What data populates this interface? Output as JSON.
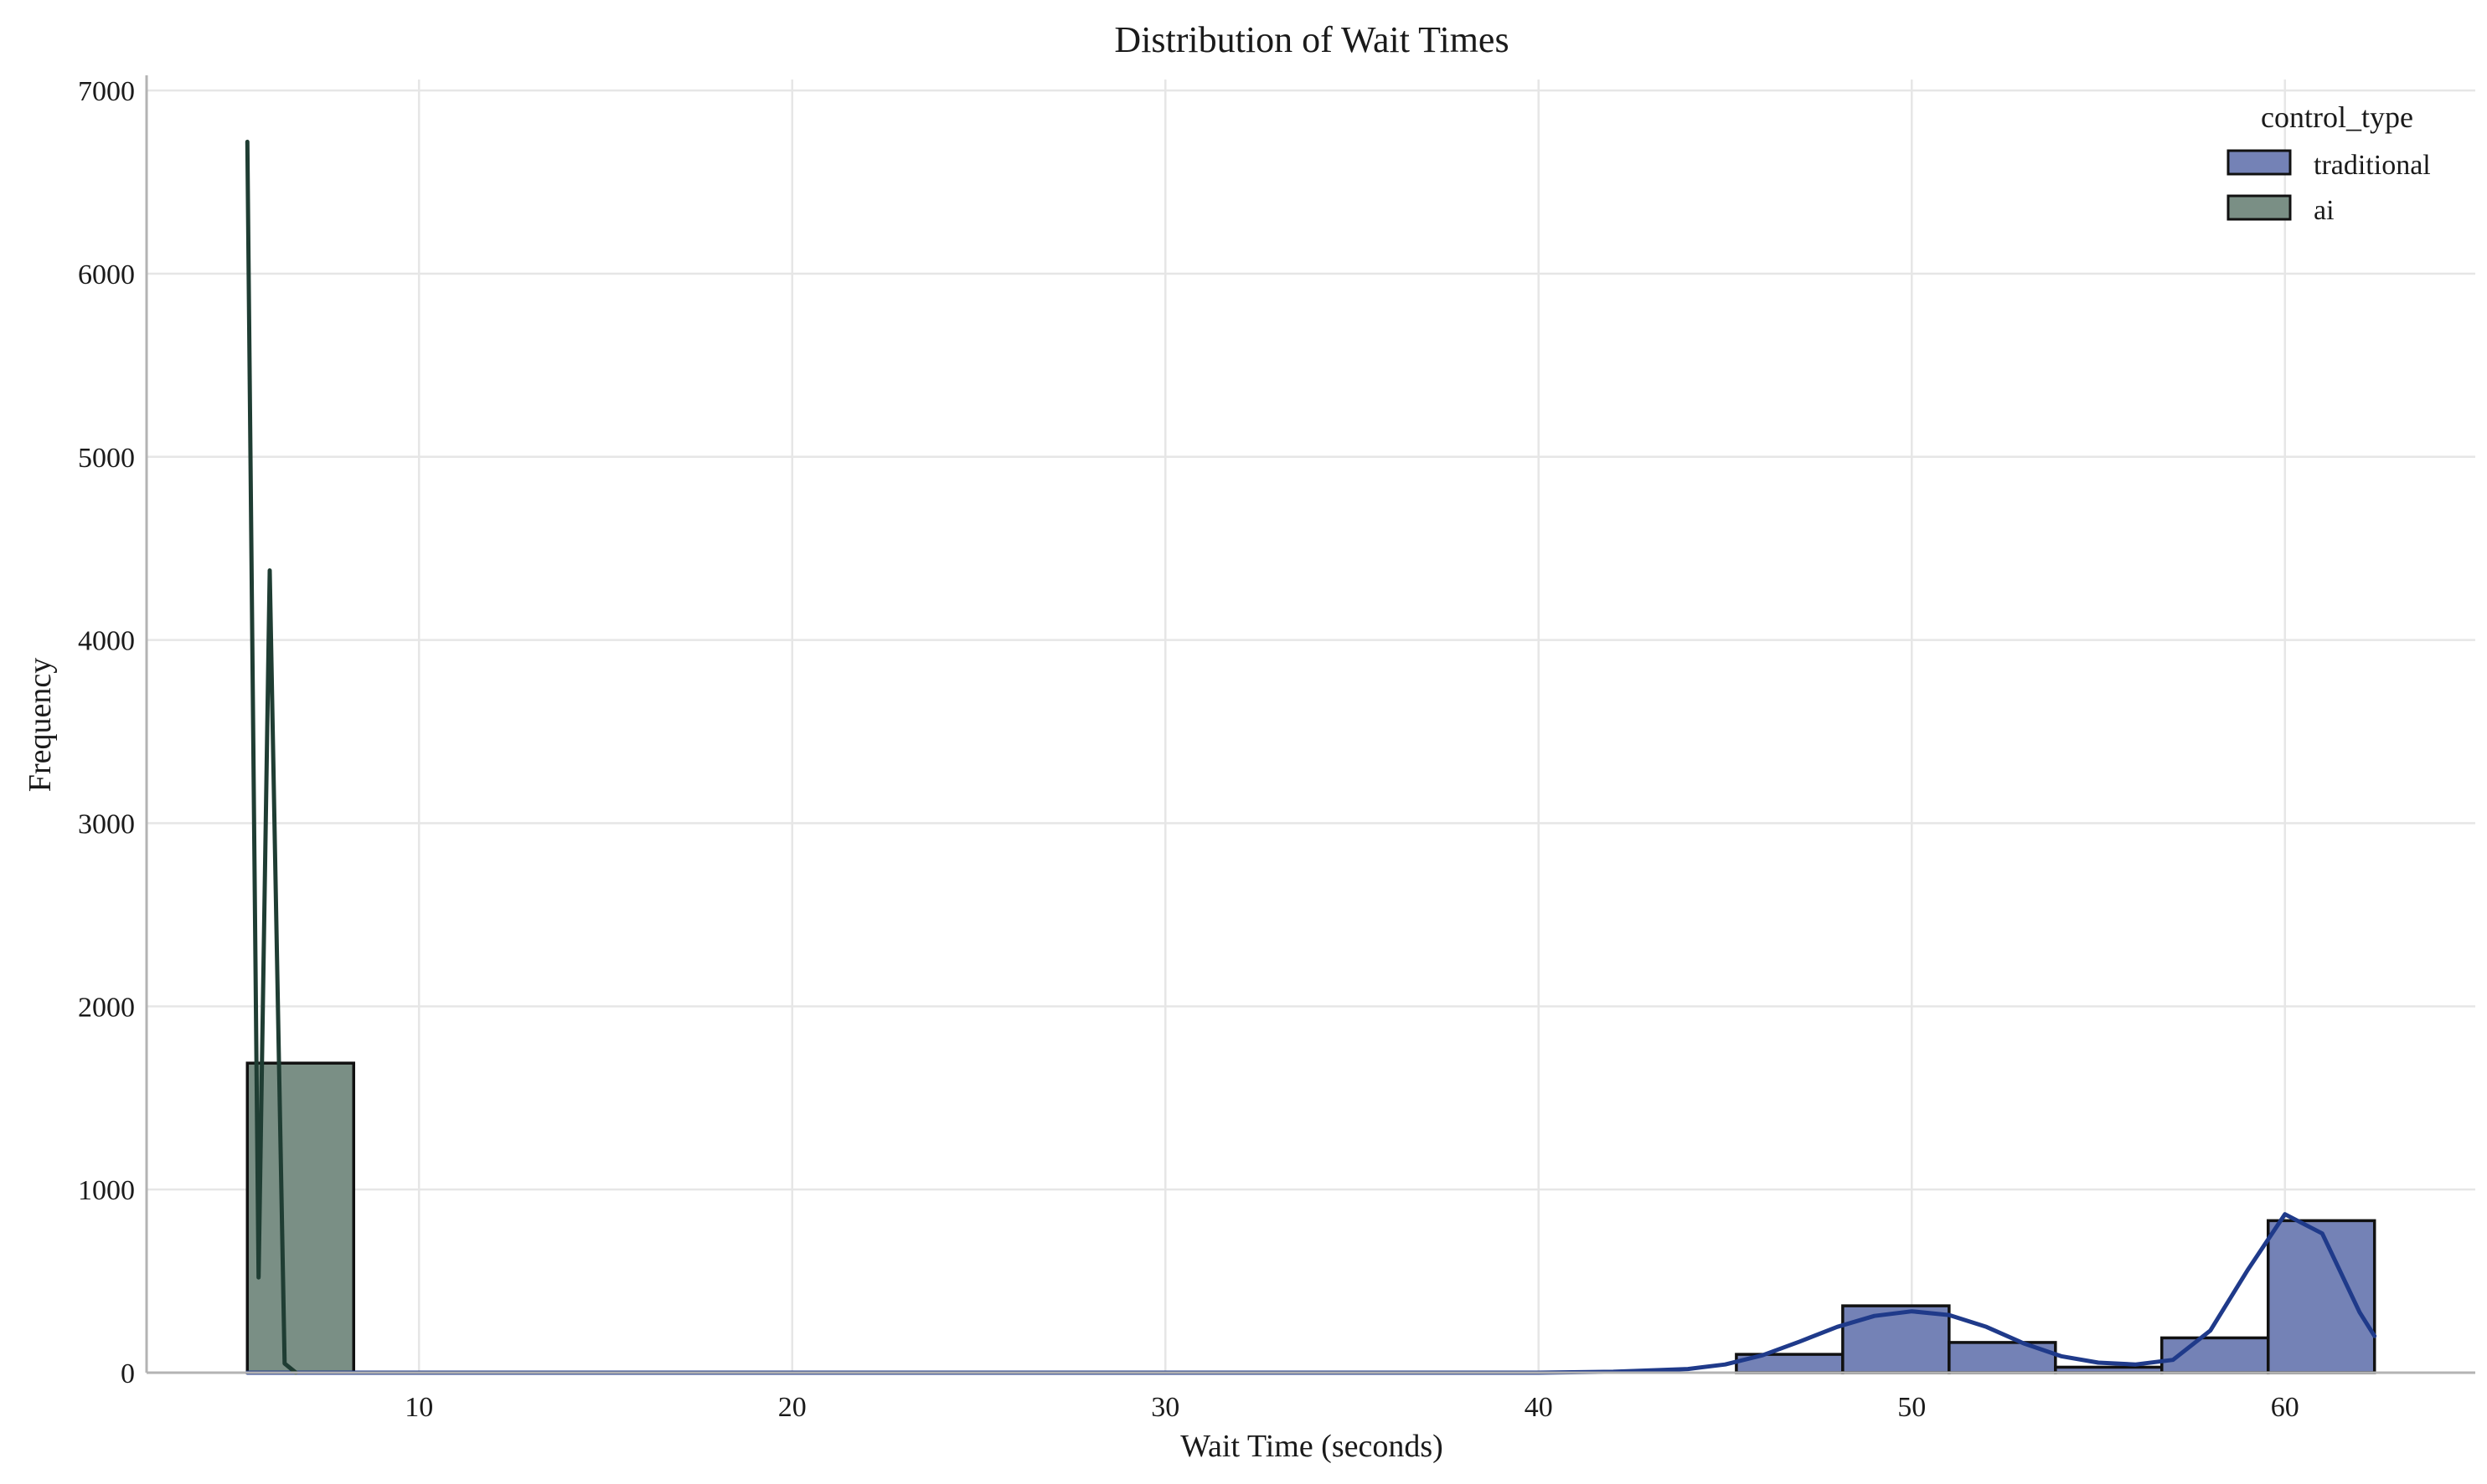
{
  "chart_data": {
    "type": "bar",
    "subtype": "histogram-with-kde",
    "title": "Distribution of Wait Times",
    "xlabel": "Wait Time (seconds)",
    "ylabel": "Frequency",
    "xlim": [
      2.7,
      65.1
    ],
    "ylim": [
      0,
      7060
    ],
    "xticks": [
      10,
      20,
      30,
      40,
      50,
      60
    ],
    "xtick_labels": [
      "10",
      "20",
      "30",
      "40",
      "50",
      "60"
    ],
    "yticks": [
      0,
      1000,
      2000,
      3000,
      4000,
      5000,
      6000,
      7000
    ],
    "ytick_labels": [
      "0",
      "1000",
      "2000",
      "3000",
      "4000",
      "5000",
      "6000",
      "7000"
    ],
    "grid": true,
    "legend": {
      "title": "control_type",
      "position": "top-right",
      "entries": [
        "traditional",
        "ai"
      ]
    },
    "bin_edges": [
      5.4,
      8.25,
      11.1,
      13.95,
      16.8,
      19.65,
      22.5,
      25.35,
      28.2,
      31.05,
      33.9,
      36.75,
      39.6,
      42.45,
      45.3,
      48.15,
      51.0,
      53.85,
      56.7,
      59.55,
      62.4
    ],
    "series": [
      {
        "name": "traditional",
        "fill": "#7482b6",
        "kde_color": "#1f3a8a",
        "counts": [
          0,
          0,
          0,
          0,
          0,
          0,
          0,
          0,
          0,
          0,
          0,
          0,
          0,
          0,
          100,
          365,
          165,
          30,
          190,
          830
        ],
        "kde": {
          "x": [
            5.4,
            10,
            20,
            30,
            40,
            42,
            44,
            45,
            46,
            47,
            48,
            49,
            50,
            51,
            52,
            53,
            54,
            55,
            56,
            57,
            58,
            59,
            60,
            61,
            62,
            62.4
          ],
          "y": [
            0,
            0,
            0,
            0,
            0,
            5,
            20,
            45,
            95,
            170,
            250,
            310,
            335,
            315,
            250,
            160,
            90,
            55,
            45,
            70,
            230,
            560,
            865,
            760,
            330,
            200
          ]
        }
      },
      {
        "name": "ai",
        "fill": "#7a8f85",
        "kde_color": "#1f3d33",
        "counts": [
          1690,
          0,
          0,
          0,
          0,
          0,
          0,
          0,
          0,
          0,
          0,
          0,
          0,
          0,
          0,
          0,
          0,
          0,
          0,
          0
        ],
        "kde": {
          "x": [
            5.4,
            5.7,
            6.0,
            6.4,
            6.7
          ],
          "y": [
            6720,
            520,
            4380,
            50,
            0
          ]
        }
      }
    ]
  }
}
